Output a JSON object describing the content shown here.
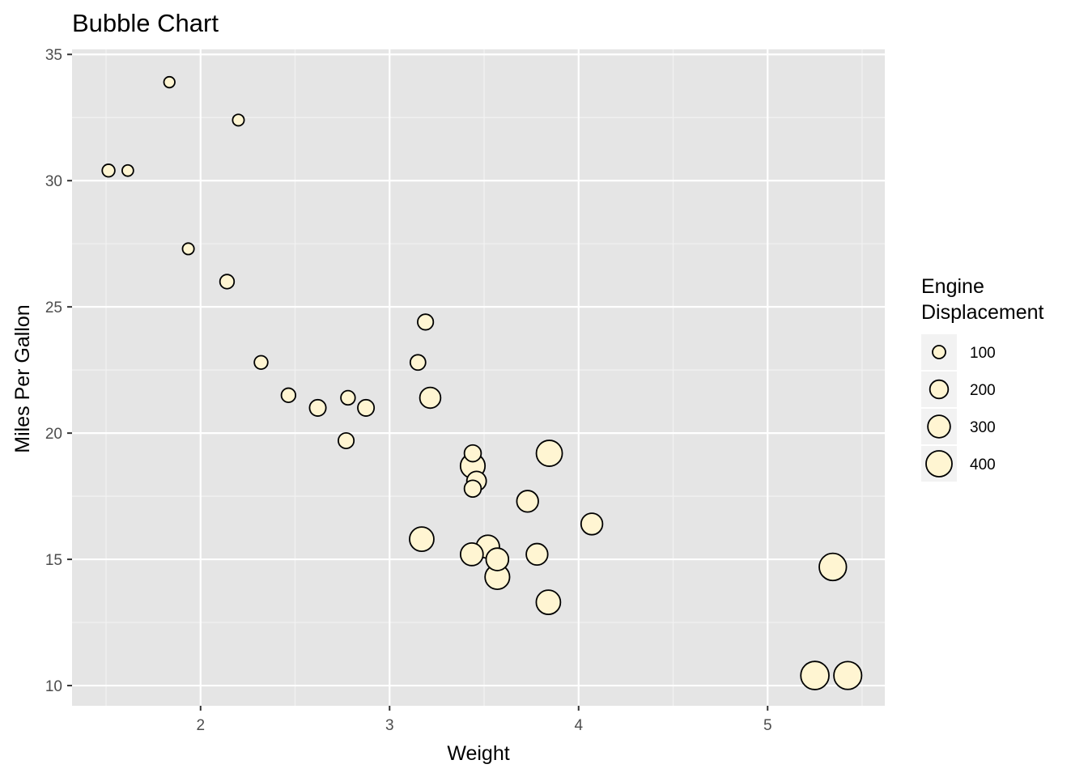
{
  "chart_data": {
    "type": "scatter",
    "title": "Bubble Chart",
    "xlabel": "Weight",
    "ylabel": "Miles Per Gallon",
    "xlim": [
      1.32,
      5.62
    ],
    "ylim": [
      9.2,
      35.2
    ],
    "x_ticks": [
      2,
      3,
      4,
      5
    ],
    "y_ticks": [
      10,
      15,
      20,
      25,
      30,
      35
    ],
    "grid": true,
    "panel_background": "#e5e5e5",
    "point_fill": "#fff5d2",
    "point_stroke": "#000000",
    "legend": {
      "title_line1": "Engine",
      "title_line2": "Displacement",
      "position": "right",
      "entries": [
        {
          "label": "100",
          "value": 100
        },
        {
          "label": "200",
          "value": 200
        },
        {
          "label": "300",
          "value": 300
        },
        {
          "label": "400",
          "value": 400
        }
      ]
    },
    "size_field": "displacement",
    "points": [
      {
        "x": 2.62,
        "y": 21.0,
        "size": 160
      },
      {
        "x": 2.875,
        "y": 21.0,
        "size": 160
      },
      {
        "x": 2.32,
        "y": 22.8,
        "size": 108
      },
      {
        "x": 3.215,
        "y": 21.4,
        "size": 258
      },
      {
        "x": 3.44,
        "y": 18.7,
        "size": 360
      },
      {
        "x": 3.46,
        "y": 18.1,
        "size": 225
      },
      {
        "x": 3.57,
        "y": 14.3,
        "size": 360
      },
      {
        "x": 3.19,
        "y": 24.4,
        "size": 146.7
      },
      {
        "x": 3.15,
        "y": 22.8,
        "size": 140.8
      },
      {
        "x": 3.44,
        "y": 19.2,
        "size": 167.6
      },
      {
        "x": 3.44,
        "y": 17.8,
        "size": 167.6
      },
      {
        "x": 4.07,
        "y": 16.4,
        "size": 275.8
      },
      {
        "x": 3.73,
        "y": 17.3,
        "size": 275.8
      },
      {
        "x": 3.78,
        "y": 15.2,
        "size": 275.8
      },
      {
        "x": 5.25,
        "y": 10.4,
        "size": 472
      },
      {
        "x": 5.424,
        "y": 10.4,
        "size": 460
      },
      {
        "x": 5.345,
        "y": 14.7,
        "size": 440
      },
      {
        "x": 2.2,
        "y": 32.4,
        "size": 78.7
      },
      {
        "x": 1.615,
        "y": 30.4,
        "size": 75.7
      },
      {
        "x": 1.835,
        "y": 33.9,
        "size": 71.1
      },
      {
        "x": 2.465,
        "y": 21.5,
        "size": 120.1
      },
      {
        "x": 3.52,
        "y": 15.5,
        "size": 318
      },
      {
        "x": 3.435,
        "y": 15.2,
        "size": 304
      },
      {
        "x": 3.84,
        "y": 13.3,
        "size": 350
      },
      {
        "x": 3.845,
        "y": 19.2,
        "size": 400
      },
      {
        "x": 1.935,
        "y": 27.3,
        "size": 79
      },
      {
        "x": 2.14,
        "y": 26.0,
        "size": 120.3
      },
      {
        "x": 1.513,
        "y": 30.4,
        "size": 95.1
      },
      {
        "x": 3.17,
        "y": 15.8,
        "size": 351
      },
      {
        "x": 2.77,
        "y": 19.7,
        "size": 145
      },
      {
        "x": 3.57,
        "y": 15.0,
        "size": 301
      },
      {
        "x": 2.78,
        "y": 21.4,
        "size": 121
      }
    ]
  }
}
